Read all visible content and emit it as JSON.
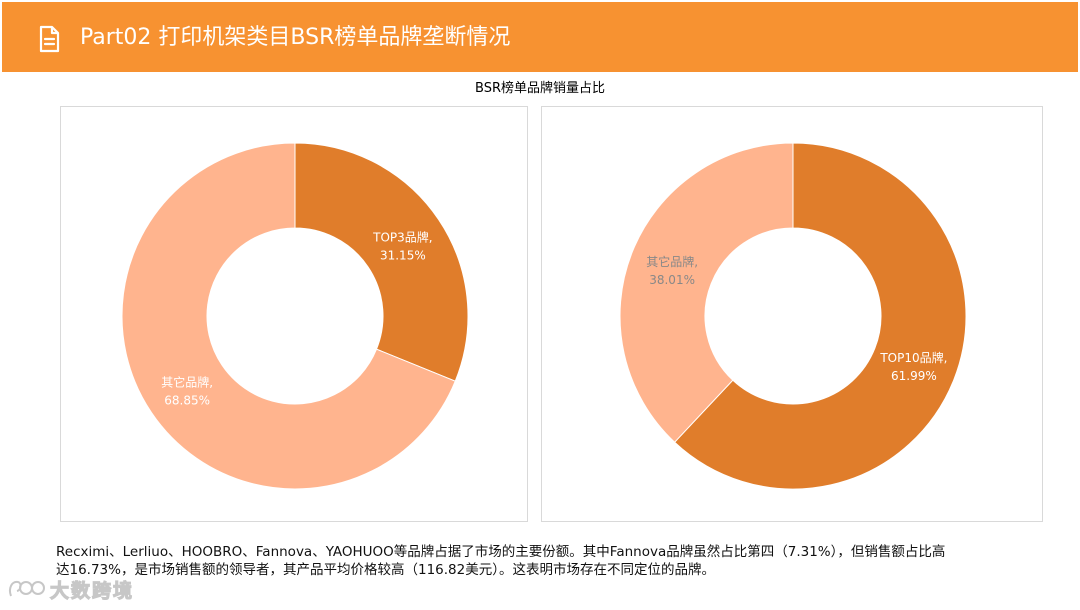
{
  "header": {
    "title": "Part02 打印机架类目BSR榜单品牌垄断情况",
    "accent_color": "#f79231",
    "icon": "document-icon"
  },
  "chart_title": "BSR榜单品牌销量占比",
  "chart_data": [
    {
      "type": "pie",
      "variant": "donut",
      "title": "BSR榜单品牌销量占比",
      "slices": [
        {
          "name": "TOP3品牌",
          "value": 31.15,
          "label": "TOP3品牌,",
          "pct_label": "31.15%",
          "color": "#e07d2b",
          "label_color": "#ffffff"
        },
        {
          "name": "其它品牌",
          "value": 68.85,
          "label": "其它品牌,",
          "pct_label": "68.85%",
          "color": "#ffb48e",
          "label_color": "#ffffff"
        }
      ]
    },
    {
      "type": "pie",
      "variant": "donut",
      "slices": [
        {
          "name": "TOP10品牌",
          "value": 61.99,
          "label": "TOP10品牌,",
          "pct_label": "61.99%",
          "color": "#e07d2b",
          "label_color": "#ffffff"
        },
        {
          "name": "其它品牌",
          "value": 38.01,
          "label": "其它品牌,",
          "pct_label": "38.01%",
          "color": "#ffb48e",
          "label_color": "#888888"
        }
      ]
    }
  ],
  "caption": {
    "line1": "Recximi、Lerliuo、HOOBRO、Fannova、YAOHUOO等品牌占据了市场的主要份额。其中Fannova品牌虽然占比第四（7.31%），但销售额占比高",
    "line2": "达16.73%，是市场销售额的领导者，其产品平均价格较高（116.82美元）。这表明市场存在不同定位的品牌。"
  },
  "watermark": {
    "text": "大数跨境",
    "icon": "logo-icon"
  }
}
